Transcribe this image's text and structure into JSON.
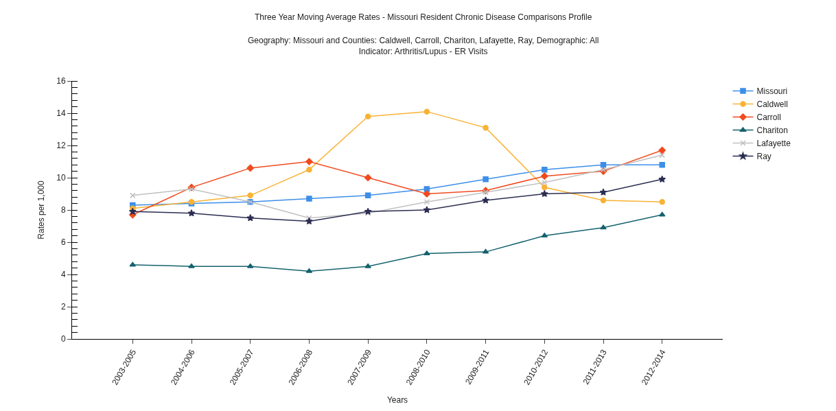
{
  "chart_data": {
    "type": "line",
    "title": "Three Year Moving Average Rates - Missouri Resident Chronic Disease Comparisons Profile",
    "subtitle": "Geography: Missouri and Counties: Caldwell, Carroll, Chariton, Lafayette, Ray, Demographic: All\nIndicator: Arthritis/Lupus - ER Visits",
    "xlabel": "Years",
    "ylabel": "Rates per 1,000",
    "categories": [
      "2003-2005",
      "2004-2006",
      "2005-2007",
      "2006-2008",
      "2007-2009",
      "2008-2010",
      "2009-2011",
      "2010-2012",
      "2011-2013",
      "2012-2014"
    ],
    "series": [
      {
        "name": "Missouri",
        "color": "#3d8ee8",
        "marker": "square",
        "values": [
          8.3,
          8.4,
          8.5,
          8.7,
          8.9,
          9.3,
          9.9,
          10.5,
          10.8,
          10.8
        ]
      },
      {
        "name": "Caldwell",
        "color": "#f9b234",
        "marker": "circle",
        "values": [
          8.1,
          8.5,
          8.9,
          10.5,
          13.8,
          14.1,
          13.1,
          9.4,
          8.6,
          8.5
        ]
      },
      {
        "name": "Carroll",
        "color": "#f04a1e",
        "marker": "diamond",
        "values": [
          7.7,
          9.4,
          10.6,
          11.0,
          10.0,
          9.0,
          9.2,
          10.1,
          10.4,
          11.7
        ]
      },
      {
        "name": "Chariton",
        "color": "#14626e",
        "marker": "triangle",
        "values": [
          4.6,
          4.5,
          4.5,
          4.2,
          4.5,
          5.3,
          5.4,
          6.4,
          6.9,
          7.7
        ]
      },
      {
        "name": "Lafayette",
        "color": "#c0c0c0",
        "marker": "cross",
        "values": [
          8.9,
          9.3,
          8.5,
          7.5,
          7.8,
          8.5,
          9.1,
          9.7,
          10.5,
          11.4
        ]
      },
      {
        "name": "Ray",
        "color": "#2b2d52",
        "marker": "star",
        "values": [
          7.9,
          7.8,
          7.5,
          7.3,
          7.9,
          8.0,
          8.6,
          9.0,
          9.1,
          9.9
        ]
      }
    ],
    "ylim": [
      0,
      16
    ],
    "yticks": [
      0,
      2,
      4,
      6,
      8,
      10,
      12,
      14,
      16
    ],
    "legend": "top right",
    "line_style": "solid"
  }
}
